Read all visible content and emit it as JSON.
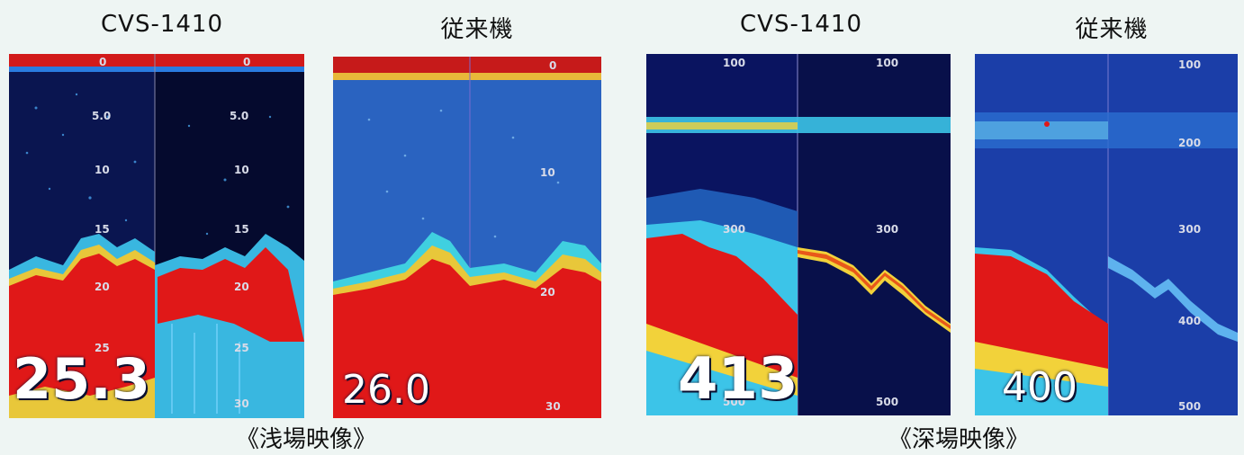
{
  "labels": {
    "left_a": "CVS-1410",
    "left_b": "従来機",
    "right_a": "CVS-1410",
    "right_b": "従来機"
  },
  "captions": {
    "shallow": "《浅場映像》",
    "deep": "《深場映像》"
  },
  "readouts": {
    "p1": "25.3",
    "p2": "26.0",
    "p3": "413",
    "p4": "400"
  },
  "ticks": {
    "p1": [
      "0",
      "5.0",
      "10",
      "15",
      "20",
      "25",
      "30"
    ],
    "p1r": [
      "0",
      "5.0",
      "10",
      "15",
      "20",
      "25",
      "30"
    ],
    "p2": [
      "0",
      "10",
      "20",
      "30"
    ],
    "p3": [
      "100",
      "300",
      "500"
    ],
    "p3r": [
      "100",
      "300",
      "500"
    ],
    "p4": [
      "100",
      "200",
      "300",
      "400",
      "500"
    ]
  },
  "colors": {
    "background": "#eef5f3",
    "sea": "#0b1a6a",
    "seabed": "#e01818",
    "return_weak": "#3cc4e8",
    "return_mid": "#f2d23a"
  }
}
